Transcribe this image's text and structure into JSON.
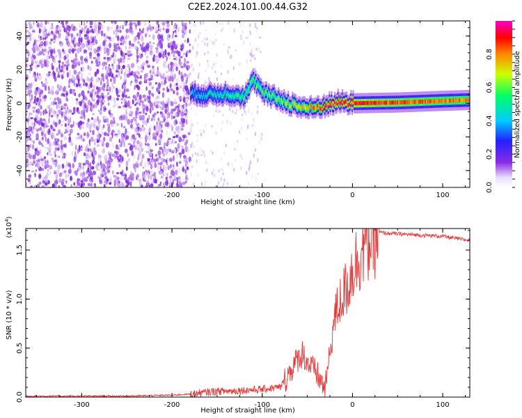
{
  "title": "C2E2.2024.101.00.44.G32",
  "chart_data": [
    {
      "type": "heatmap",
      "xlabel": "Height of straight line (km)",
      "ylabel": "Frequency (Hz)",
      "xlim": [
        -362,
        130
      ],
      "ylim": [
        -50,
        49
      ],
      "x_ticks": [
        "-300",
        "-200",
        "-100",
        "0",
        "100"
      ],
      "x_tick_values": [
        -300,
        -200,
        -100,
        0,
        100
      ],
      "y_ticks": [
        "-40",
        "-20",
        "0",
        "20",
        "40"
      ],
      "y_tick_values": [
        -40,
        -20,
        0,
        20,
        40
      ],
      "colorbar": {
        "label": "Normalized spectral amplitude",
        "range": [
          0,
          1
        ],
        "ticks": [
          "0.0",
          "0.2",
          "0.4",
          "0.6",
          "0.8"
        ],
        "tick_values": [
          0.0,
          0.2,
          0.4,
          0.6,
          0.8
        ]
      },
      "ridge": {
        "x": [
          -180,
          -160,
          -140,
          -120,
          -110,
          -100,
          -80,
          -60,
          -45,
          -30,
          -15,
          0,
          50,
          100,
          130
        ],
        "freq": [
          6,
          5,
          6,
          4,
          14,
          6,
          2,
          -2,
          -3,
          -1,
          1,
          0,
          0.5,
          1.5,
          2
        ],
        "amplitude": [
          0.4,
          0.45,
          0.5,
          0.55,
          0.6,
          0.55,
          0.6,
          0.7,
          0.8,
          0.85,
          0.9,
          0.9,
          0.85,
          0.8,
          0.8
        ]
      },
      "noise_region_x": [
        -362,
        -180
      ]
    },
    {
      "type": "line",
      "xlabel": "Height of straight line (km)",
      "ylabel": "SNR (10 * v/v)",
      "y_multiplier": "(x10",
      "y_multiplier_exp": "4",
      "y_multiplier_close": ")",
      "xlim": [
        -362,
        130
      ],
      "ylim": [
        0,
        1.72
      ],
      "x_ticks": [
        "-300",
        "-200",
        "-100",
        "0",
        "100"
      ],
      "x_tick_values": [
        -300,
        -200,
        -100,
        0,
        100
      ],
      "y_ticks": [
        "0.0",
        "0.5",
        "1.0",
        "1.5"
      ],
      "y_tick_values": [
        0.0,
        0.5,
        1.0,
        1.5
      ],
      "series": [
        {
          "color": "#ee3333",
          "x": [
            -362,
            -300,
            -250,
            -200,
            -180,
            -160,
            -150,
            -140,
            -120,
            -100,
            -80,
            -70,
            -60,
            -55,
            -50,
            -45,
            -40,
            -35,
            -30,
            -25,
            -20,
            -15,
            -10,
            -5,
            0,
            5,
            10,
            15,
            20,
            25,
            30,
            40,
            60,
            80,
            100,
            120,
            130
          ],
          "y": [
            0.01,
            0.01,
            0.01,
            0.02,
            0.03,
            0.05,
            0.06,
            0.06,
            0.07,
            0.08,
            0.1,
            0.25,
            0.4,
            0.45,
            0.35,
            0.3,
            0.25,
            0.15,
            0.1,
            0.45,
            0.8,
            0.95,
            1.05,
            1.15,
            1.3,
            1.4,
            1.5,
            1.58,
            1.63,
            1.66,
            1.68,
            1.67,
            1.66,
            1.65,
            1.64,
            1.61,
            1.6
          ]
        }
      ]
    }
  ]
}
